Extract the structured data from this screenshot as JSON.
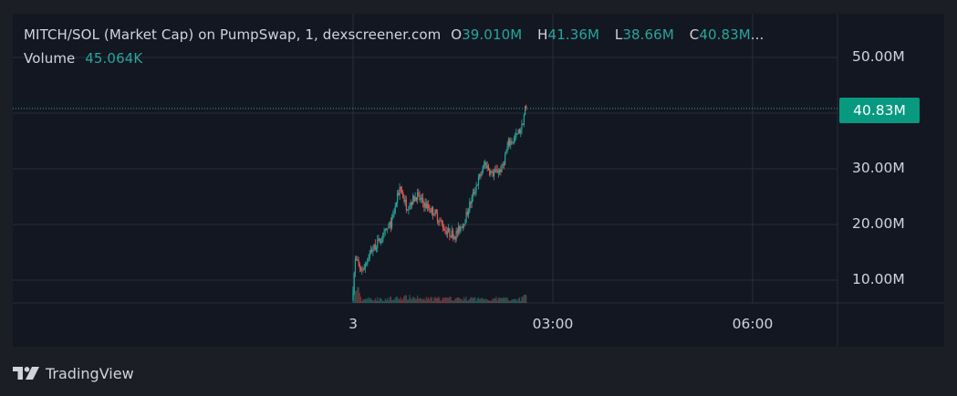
{
  "legend": {
    "title": "MITCH/SOL (Market Cap) on PumpSwap, 1, dexscreener.com",
    "open_key": "O",
    "open_value": "39.010M",
    "high_key": "H",
    "high_value": "41.36M",
    "low_key": "L",
    "low_value": "38.66M",
    "close_key": "C",
    "close_value": "40.83M",
    "ellipsis": "...",
    "volume_key": "Volume",
    "volume_value": "45.064K"
  },
  "price_tag": "40.83M",
  "branding": "TradingView",
  "colors": {
    "up": "#26a69a",
    "down": "#ef5350",
    "tag": "#089981",
    "grid": "#2a2e39",
    "panel": "#131722"
  },
  "chart_data": {
    "type": "candlestick",
    "y_axis": {
      "ticks": [
        {
          "value": 10,
          "label": "10.00M"
        },
        {
          "value": 20,
          "label": "20.00M"
        },
        {
          "value": 30,
          "label": "30.00M"
        },
        {
          "value": 50,
          "label": "50.00M"
        }
      ],
      "range": [
        5.6,
        50
      ]
    },
    "x_axis": {
      "ticks": [
        {
          "label": "3",
          "hour": 0
        },
        {
          "label": "03:00",
          "hour": 3
        },
        {
          "label": "06:00",
          "hour": 6
        }
      ]
    },
    "last_price": 40.83,
    "grid": true,
    "path_points": [
      [
        0.0,
        6.5
      ],
      [
        0.05,
        13.5
      ],
      [
        0.15,
        11.8
      ],
      [
        0.3,
        15.5
      ],
      [
        0.45,
        17.5
      ],
      [
        0.6,
        20.5
      ],
      [
        0.72,
        26.8
      ],
      [
        0.82,
        23.2
      ],
      [
        0.97,
        25.2
      ],
      [
        1.1,
        23.5
      ],
      [
        1.25,
        22.0
      ],
      [
        1.4,
        19.0
      ],
      [
        1.55,
        18.0
      ],
      [
        1.7,
        21.0
      ],
      [
        1.85,
        26.5
      ],
      [
        2.0,
        31.0
      ],
      [
        2.1,
        29.0
      ],
      [
        2.25,
        30.0
      ],
      [
        2.35,
        34.5
      ],
      [
        2.45,
        35.5
      ],
      [
        2.55,
        37.5
      ],
      [
        2.6,
        40.83
      ]
    ]
  }
}
